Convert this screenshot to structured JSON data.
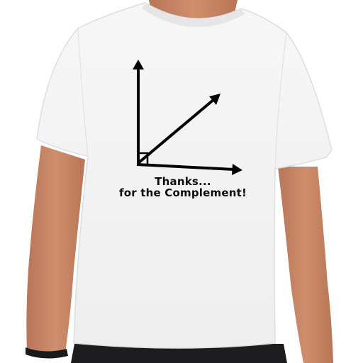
{
  "shirt": {
    "text_line_1": "Thanks...",
    "text_line_2": "for the Complement!"
  },
  "graphic": {
    "depicts": "right angle divided by a diagonal ray"
  },
  "colors": {
    "shirt": "#f4f4f4",
    "skin": "#c98a68",
    "ink": "#0a0a0a",
    "background": "#ffffff"
  }
}
